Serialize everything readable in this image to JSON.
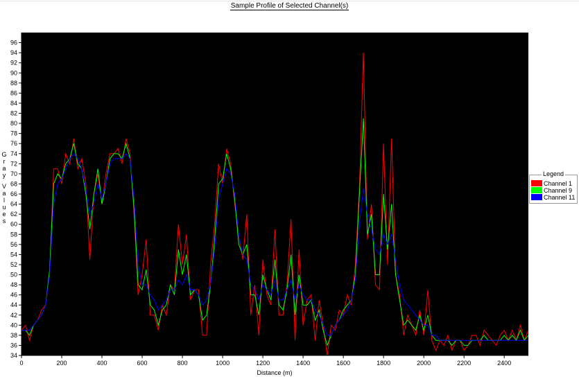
{
  "chart_data": {
    "type": "line",
    "title": "Sample Profile of Selected Channel(s)",
    "xlabel": "Distance (m)",
    "ylabel": "Gray Values",
    "xlim": [
      0,
      2520
    ],
    "ylim": [
      34,
      98
    ],
    "x_ticks": [
      0,
      200,
      400,
      600,
      800,
      1000,
      1200,
      1400,
      1600,
      1800,
      2000,
      2200,
      2400
    ],
    "y_ticks": [
      34,
      36,
      38,
      40,
      42,
      44,
      46,
      48,
      50,
      52,
      54,
      56,
      58,
      60,
      62,
      64,
      66,
      68,
      70,
      72,
      74,
      76,
      78,
      80,
      82,
      84,
      86,
      88,
      90,
      92,
      94,
      96
    ],
    "background": "#000000",
    "legend_title": "Legend",
    "legend_position": "right",
    "series": [
      {
        "name": "Channel 1",
        "color": "#ff0000",
        "x": [
          0,
          20,
          40,
          60,
          80,
          100,
          120,
          140,
          160,
          180,
          200,
          220,
          240,
          260,
          280,
          300,
          320,
          340,
          360,
          380,
          400,
          420,
          440,
          460,
          480,
          500,
          520,
          540,
          560,
          580,
          600,
          620,
          640,
          660,
          680,
          700,
          720,
          740,
          760,
          780,
          800,
          820,
          840,
          860,
          880,
          900,
          920,
          940,
          960,
          980,
          1000,
          1020,
          1040,
          1060,
          1080,
          1100,
          1120,
          1140,
          1160,
          1180,
          1200,
          1220,
          1240,
          1260,
          1280,
          1300,
          1320,
          1340,
          1360,
          1380,
          1400,
          1420,
          1440,
          1460,
          1480,
          1500,
          1520,
          1540,
          1560,
          1580,
          1600,
          1620,
          1640,
          1660,
          1680,
          1700,
          1720,
          1740,
          1760,
          1780,
          1800,
          1820,
          1840,
          1860,
          1880,
          1900,
          1920,
          1940,
          1960,
          1980,
          2000,
          2020,
          2040,
          2060,
          2080,
          2100,
          2120,
          2140,
          2160,
          2180,
          2200,
          2220,
          2240,
          2260,
          2280,
          2300,
          2320,
          2340,
          2360,
          2380,
          2400,
          2420,
          2440,
          2460,
          2480,
          2500,
          2520
        ],
        "values": [
          39,
          40,
          37,
          40,
          41,
          43,
          44,
          50,
          71,
          71,
          68,
          74,
          72,
          77,
          71,
          73,
          68,
          53,
          66,
          70,
          64,
          70,
          74,
          74,
          75,
          72,
          77,
          74,
          62,
          46,
          50,
          57,
          42,
          42,
          39,
          44,
          42,
          48,
          47,
          60,
          52,
          58,
          45,
          47,
          47,
          38,
          38,
          52,
          60,
          72,
          68,
          75,
          72,
          64,
          58,
          53,
          62,
          42,
          48,
          38,
          53,
          46,
          44,
          59,
          42,
          42,
          48,
          61,
          37,
          55,
          40,
          45,
          46,
          37,
          45,
          40,
          34,
          40,
          39,
          43,
          42,
          46,
          44,
          52,
          67,
          94,
          57,
          64,
          48,
          47,
          76,
          52,
          77,
          50,
          46,
          38,
          42,
          40,
          38,
          43,
          38,
          47,
          37,
          35,
          37,
          36,
          38,
          35,
          37,
          37,
          35,
          36,
          38,
          38,
          36,
          39,
          38,
          37,
          36,
          38,
          39,
          37,
          39,
          37,
          40,
          37,
          39
        ]
      },
      {
        "name": "Channel 9",
        "color": "#00ff00",
        "x": [
          0,
          20,
          40,
          60,
          80,
          100,
          120,
          140,
          160,
          180,
          200,
          220,
          240,
          260,
          280,
          300,
          320,
          340,
          360,
          380,
          400,
          420,
          440,
          460,
          480,
          500,
          520,
          540,
          560,
          580,
          600,
          620,
          640,
          660,
          680,
          700,
          720,
          740,
          760,
          780,
          800,
          820,
          840,
          860,
          880,
          900,
          920,
          940,
          960,
          980,
          1000,
          1020,
          1040,
          1060,
          1080,
          1100,
          1120,
          1140,
          1160,
          1180,
          1200,
          1220,
          1240,
          1260,
          1280,
          1300,
          1320,
          1340,
          1360,
          1380,
          1400,
          1420,
          1440,
          1460,
          1480,
          1500,
          1520,
          1540,
          1560,
          1580,
          1600,
          1620,
          1640,
          1660,
          1680,
          1700,
          1720,
          1740,
          1760,
          1780,
          1800,
          1820,
          1840,
          1860,
          1880,
          1900,
          1920,
          1940,
          1960,
          1980,
          2000,
          2020,
          2040,
          2060,
          2080,
          2100,
          2120,
          2140,
          2160,
          2180,
          2200,
          2220,
          2240,
          2260,
          2280,
          2300,
          2320,
          2340,
          2360,
          2380,
          2400,
          2420,
          2440,
          2460,
          2480,
          2500,
          2520
        ],
        "values": [
          39,
          39,
          38,
          40,
          41,
          42,
          44,
          51,
          68,
          70,
          69,
          72,
          73,
          76,
          72,
          71,
          66,
          59,
          66,
          71,
          64,
          68,
          73,
          74,
          74,
          73,
          76,
          73,
          63,
          48,
          47,
          51,
          44,
          43,
          40,
          43,
          44,
          48,
          46,
          55,
          50,
          54,
          46,
          47,
          46,
          41,
          42,
          48,
          57,
          68,
          69,
          74,
          71,
          65,
          56,
          54,
          56,
          46,
          46,
          42,
          50,
          47,
          45,
          53,
          44,
          43,
          47,
          54,
          42,
          50,
          44,
          44,
          45,
          41,
          43,
          39,
          36,
          38,
          40,
          41,
          43,
          44,
          45,
          50,
          66,
          81,
          58,
          62,
          50,
          50,
          66,
          55,
          64,
          50,
          45,
          40,
          41,
          40,
          39,
          42,
          39,
          42,
          38,
          37,
          37,
          37,
          37,
          36,
          37,
          37,
          36,
          36,
          37,
          37,
          37,
          38,
          37,
          37,
          37,
          37,
          38,
          37,
          38,
          37,
          39,
          37,
          38
        ]
      },
      {
        "name": "Channel 11",
        "color": "#0000ff",
        "x": [
          0,
          20,
          40,
          60,
          80,
          100,
          120,
          140,
          160,
          180,
          200,
          220,
          240,
          260,
          280,
          300,
          320,
          340,
          360,
          380,
          400,
          420,
          440,
          460,
          480,
          500,
          520,
          540,
          560,
          580,
          600,
          620,
          640,
          660,
          680,
          700,
          720,
          740,
          760,
          780,
          800,
          820,
          840,
          860,
          880,
          900,
          920,
          940,
          960,
          980,
          1000,
          1020,
          1040,
          1060,
          1080,
          1100,
          1120,
          1140,
          1160,
          1180,
          1200,
          1220,
          1240,
          1260,
          1280,
          1300,
          1320,
          1340,
          1360,
          1380,
          1400,
          1420,
          1440,
          1460,
          1480,
          1500,
          1520,
          1540,
          1560,
          1580,
          1600,
          1620,
          1640,
          1660,
          1680,
          1700,
          1720,
          1740,
          1760,
          1780,
          1800,
          1820,
          1840,
          1860,
          1880,
          1900,
          1920,
          1940,
          1960,
          1980,
          2000,
          2020,
          2040,
          2060,
          2080,
          2100,
          2120,
          2140,
          2160,
          2180,
          2200,
          2220,
          2240,
          2260,
          2280,
          2300,
          2320,
          2340,
          2360,
          2380,
          2400,
          2420,
          2440,
          2460,
          2480,
          2500,
          2520
        ],
        "values": [
          39,
          39,
          39,
          40,
          41,
          42,
          44,
          50,
          64,
          68,
          69,
          71,
          73,
          74,
          73,
          71,
          67,
          62,
          64,
          68,
          65,
          68,
          72,
          73,
          73,
          73,
          74,
          73,
          65,
          52,
          48,
          48,
          46,
          45,
          43,
          44,
          45,
          47,
          47,
          49,
          48,
          50,
          47,
          47,
          46,
          44,
          45,
          48,
          55,
          65,
          68,
          71,
          70,
          66,
          58,
          54,
          53,
          48,
          47,
          45,
          48,
          47,
          46,
          49,
          45,
          45,
          47,
          49,
          45,
          48,
          46,
          45,
          45,
          43,
          42,
          40,
          38,
          38,
          40,
          41,
          42,
          43,
          45,
          49,
          60,
          67,
          62,
          59,
          55,
          54,
          58,
          56,
          58,
          53,
          48,
          45,
          44,
          43,
          42,
          41,
          40,
          40,
          38,
          38,
          37,
          37,
          37,
          37,
          37,
          37,
          37,
          37,
          37,
          37,
          37,
          37,
          37,
          37,
          37,
          37,
          37,
          37,
          37,
          37,
          37,
          37,
          37
        ]
      }
    ]
  }
}
